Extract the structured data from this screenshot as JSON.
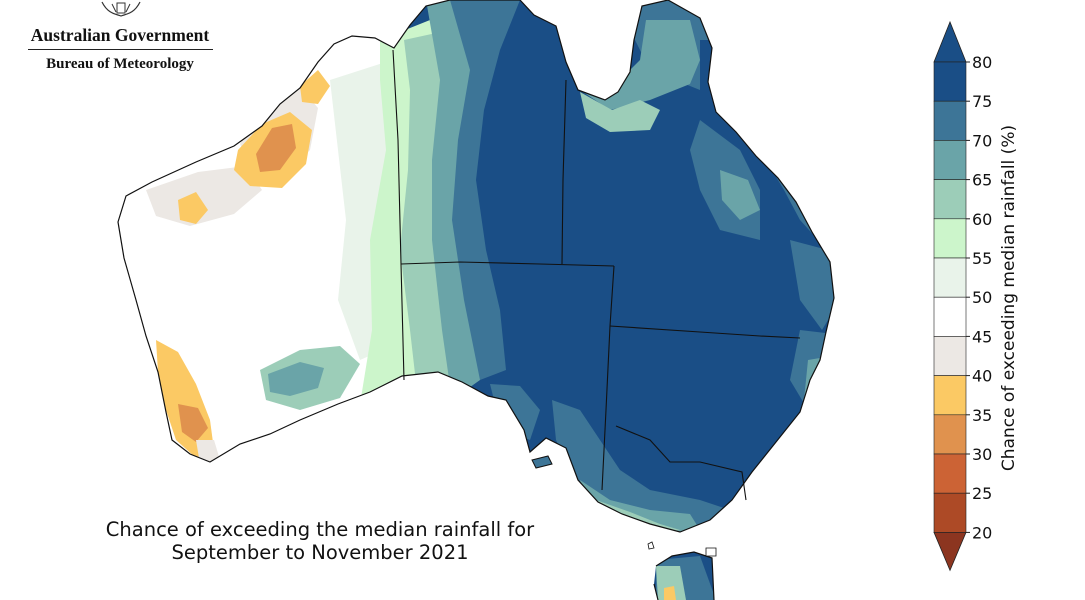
{
  "brand": {
    "government": "Australian Government",
    "agency": "Bureau of Meteorology"
  },
  "map": {
    "title_line1": "Chance of exceeding the median rainfall for",
    "title_line2": "September to November 2021"
  },
  "legend": {
    "label": "Chance of exceeding median rainfall (%)",
    "ticks": [
      "80",
      "75",
      "70",
      "65",
      "60",
      "55",
      "50",
      "45",
      "40",
      "35",
      "30",
      "25",
      "20"
    ],
    "bins": [
      {
        "range": "75–80",
        "color": "#1a4e86"
      },
      {
        "range": "70–75",
        "color": "#3d7597"
      },
      {
        "range": "65–70",
        "color": "#6aa4a8"
      },
      {
        "range": "60–65",
        "color": "#9ccdb8"
      },
      {
        "range": "55–60",
        "color": "#ccf5cb"
      },
      {
        "range": "50–55",
        "color": "#e9f3ea"
      },
      {
        "range": "45–50",
        "color": "#ffffff"
      },
      {
        "range": "40–45",
        "color": "#ece8e4"
      },
      {
        "range": "35–40",
        "color": "#fbc964"
      },
      {
        "range": "30–35",
        "color": "#e0924e"
      },
      {
        "range": "25–30",
        "color": "#cc6335"
      },
      {
        "range": "20–25",
        "color": "#ad4a26"
      }
    ],
    "max_arrow_color": "#1a4e86",
    "min_arrow_color": "#8c3520"
  }
}
